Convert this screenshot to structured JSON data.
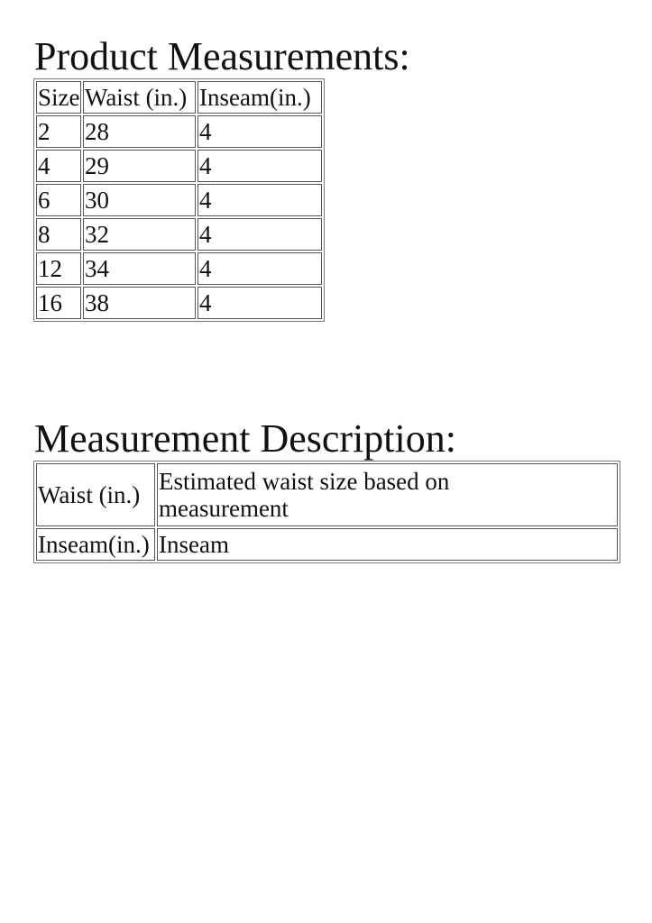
{
  "product_measurements": {
    "title": "Product Measurements:",
    "headers": [
      "Size",
      "Waist (in.)",
      "Inseam(in.)"
    ],
    "rows": [
      [
        "2",
        "28",
        "4"
      ],
      [
        "4",
        "29",
        "4"
      ],
      [
        "6",
        "30",
        "4"
      ],
      [
        "8",
        "32",
        "4"
      ],
      [
        "12",
        "34",
        "4"
      ],
      [
        "16",
        "38",
        "4"
      ]
    ]
  },
  "measurement_description": {
    "title": "Measurement Description:",
    "rows": [
      [
        "Waist (in.)",
        "Estimated waist size based on measurement"
      ],
      [
        "Inseam(in.)",
        "Inseam"
      ]
    ]
  }
}
